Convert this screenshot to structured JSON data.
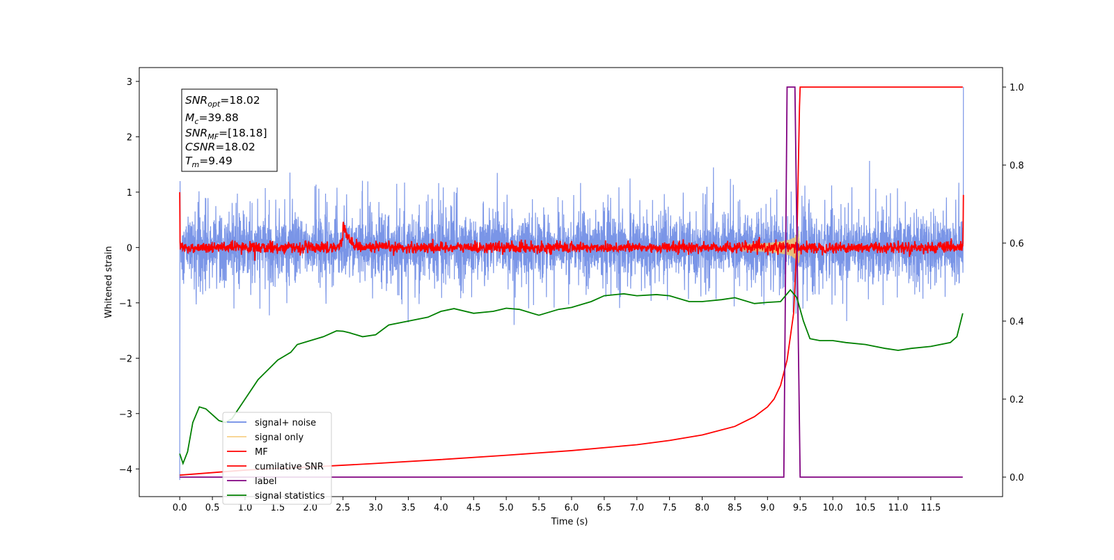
{
  "chart_data": {
    "type": "line",
    "xlabel": "Time (s)",
    "ylabel": "Whitened strain",
    "xlim": [
      -0.62,
      12.6
    ],
    "ylim_left": [
      -4.5,
      3.25
    ],
    "ylim_right": [
      -0.05,
      1.05
    ],
    "x_ticks": [
      "0.0",
      "0.5",
      "1.0",
      "1.5",
      "2.0",
      "2.5",
      "3.0",
      "3.5",
      "4.0",
      "4.5",
      "5.0",
      "5.5",
      "6.0",
      "6.5",
      "7.0",
      "7.5",
      "8.0",
      "8.5",
      "9.0",
      "9.5",
      "10.0",
      "10.5",
      "11.0",
      "11.5"
    ],
    "y_left_ticks": [
      "3",
      "2",
      "1",
      "0",
      "−1",
      "−2",
      "−3",
      "−4"
    ],
    "y_right_ticks": [
      "1.0",
      "0.8",
      "0.6",
      "0.4",
      "0.2",
      "0.0"
    ],
    "annotation": {
      "line1": {
        "italic": "SNR",
        "sub": "opt",
        "rest": "=18.02"
      },
      "line2": {
        "italic": "M",
        "sub": "c",
        "rest": "=39.88"
      },
      "line3": {
        "italic": "SNR",
        "sub": "MF",
        "rest": "=[18.18]"
      },
      "line4": {
        "italic": "CSNR",
        "sub": "",
        "rest": "=18.02"
      },
      "line5": {
        "italic": "T",
        "sub": "m",
        "rest": "=9.49"
      }
    },
    "legend": {
      "placement": "lower-left",
      "entries": [
        {
          "label": "signal+ noise",
          "color": "#6c8ae4"
        },
        {
          "label": "signal only",
          "color": "#f5c46a"
        },
        {
          "label": "MF",
          "color": "#ff0000"
        },
        {
          "label": "cumilative SNR",
          "color": "#ff0000"
        },
        {
          "label": "label",
          "color": "#800080"
        },
        {
          "label": "signal statistics",
          "color": "#008000"
        }
      ]
    },
    "series": [
      {
        "name": "signal+ noise",
        "axis": "left",
        "description_values": "noise band approx amplitude 0.6 around 0",
        "noise_amplitude": 0.25,
        "noise_spikes": 0.9
      },
      {
        "name": "signal only",
        "axis": "left",
        "chirp_peak_time": 9.49,
        "chirp_peak_amplitude": 0.35
      },
      {
        "name": "MF",
        "axis": "left",
        "baseline": 0.0,
        "noise_amplitude": 0.05,
        "bump": {
          "x": 2.5,
          "y": 0.45
        },
        "edges": {
          "start": 1.0,
          "end": 0.95
        }
      },
      {
        "name": "cumilative SNR",
        "axis": "right",
        "x": [
          0.0,
          1.0,
          2.0,
          3.0,
          4.0,
          5.0,
          6.0,
          7.0,
          7.5,
          8.0,
          8.5,
          8.8,
          9.0,
          9.1,
          9.2,
          9.3,
          9.4,
          9.45,
          9.49,
          9.5,
          11.99
        ],
        "y": [
          0.005,
          0.018,
          0.026,
          0.035,
          0.045,
          0.056,
          0.068,
          0.083,
          0.094,
          0.108,
          0.13,
          0.155,
          0.18,
          0.2,
          0.235,
          0.3,
          0.42,
          0.6,
          0.95,
          1.0,
          1.0
        ]
      },
      {
        "name": "label",
        "axis": "right",
        "x": [
          0.0,
          9.25,
          9.3,
          9.42,
          9.5,
          11.99
        ],
        "y": [
          0.0,
          0.0,
          1.0,
          1.0,
          0.0,
          0.0
        ]
      },
      {
        "name": "signal statistics",
        "axis": "right",
        "x": [
          0.0,
          0.05,
          0.12,
          0.2,
          0.3,
          0.4,
          0.5,
          0.6,
          0.7,
          0.8,
          1.0,
          1.2,
          1.5,
          1.7,
          1.8,
          2.0,
          2.2,
          2.4,
          2.5,
          2.6,
          2.8,
          3.0,
          3.2,
          3.5,
          3.8,
          4.0,
          4.2,
          4.5,
          4.8,
          5.0,
          5.2,
          5.5,
          5.8,
          6.0,
          6.3,
          6.5,
          6.8,
          7.0,
          7.3,
          7.5,
          7.8,
          8.0,
          8.3,
          8.5,
          8.8,
          9.0,
          9.2,
          9.3,
          9.35,
          9.45,
          9.55,
          9.65,
          9.8,
          10.0,
          10.2,
          10.5,
          10.8,
          11.0,
          11.2,
          11.5,
          11.8,
          11.9,
          11.99
        ],
        "y": [
          0.06,
          0.035,
          0.065,
          0.14,
          0.18,
          0.175,
          0.16,
          0.145,
          0.14,
          0.15,
          0.2,
          0.25,
          0.3,
          0.32,
          0.34,
          0.35,
          0.36,
          0.375,
          0.374,
          0.37,
          0.36,
          0.365,
          0.39,
          0.4,
          0.41,
          0.425,
          0.432,
          0.42,
          0.425,
          0.433,
          0.43,
          0.415,
          0.43,
          0.435,
          0.45,
          0.465,
          0.47,
          0.465,
          0.468,
          0.465,
          0.45,
          0.45,
          0.455,
          0.46,
          0.445,
          0.448,
          0.45,
          0.47,
          0.48,
          0.46,
          0.4,
          0.355,
          0.35,
          0.35,
          0.345,
          0.34,
          0.33,
          0.325,
          0.33,
          0.335,
          0.345,
          0.36,
          0.42
        ]
      }
    ]
  }
}
